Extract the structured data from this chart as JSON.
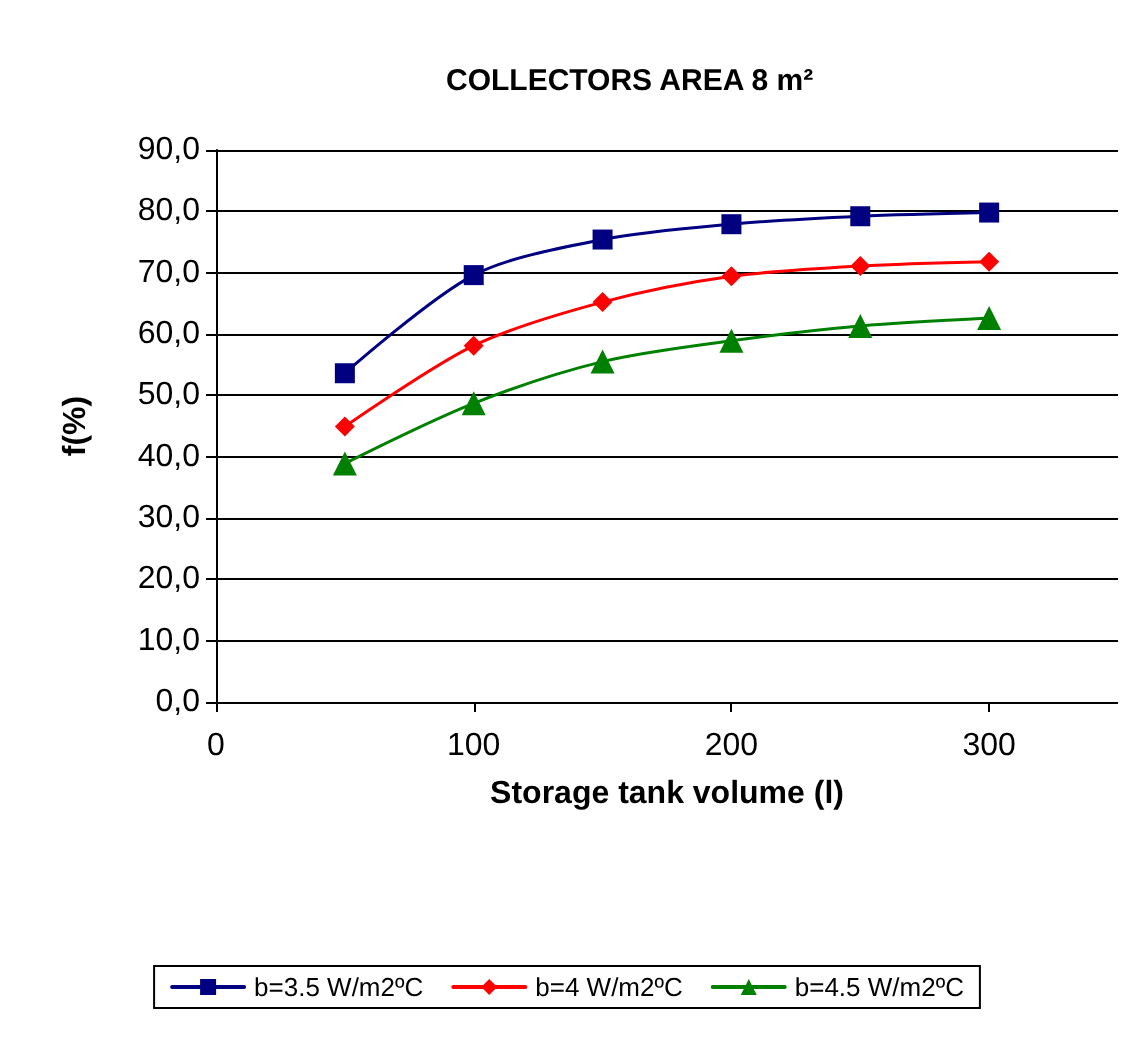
{
  "chart_data": {
    "type": "line",
    "title": "COLLECTORS AREA 8 m²",
    "xlabel": "Storage tank volume (l)",
    "ylabel": "f(%)",
    "x": [
      50,
      100,
      150,
      200,
      250,
      300
    ],
    "series": [
      {
        "name": "b=3.5 W/m2ºC",
        "color": "#000080",
        "marker": "square",
        "values": [
          53.6,
          69.6,
          75.4,
          77.9,
          79.2,
          79.8
        ]
      },
      {
        "name": "b=4 W/m2ºC",
        "color": "#ff0000",
        "marker": "diamond",
        "values": [
          44.9,
          58.1,
          65.2,
          69.4,
          71.1,
          71.8
        ]
      },
      {
        "name": "b=4.5 W/m2ºC",
        "color": "#008000",
        "marker": "triangle",
        "values": [
          38.9,
          48.7,
          55.5,
          58.9,
          61.3,
          62.6
        ]
      }
    ],
    "xlim": [
      0,
      350
    ],
    "xticks": [
      0,
      100,
      200,
      300
    ],
    "ylim": [
      0,
      90
    ],
    "yticks": [
      {
        "value": 0,
        "label": "0,0"
      },
      {
        "value": 10,
        "label": "10,0"
      },
      {
        "value": 20,
        "label": "20,0"
      },
      {
        "value": 30,
        "label": "30,0"
      },
      {
        "value": 40,
        "label": "40,0"
      },
      {
        "value": 50,
        "label": "50,0"
      },
      {
        "value": 60,
        "label": "60,0"
      },
      {
        "value": 70,
        "label": "70,0"
      },
      {
        "value": 80,
        "label": "80,0"
      },
      {
        "value": 90,
        "label": "90,0"
      }
    ],
    "grid": "y",
    "legend": "bottom",
    "line_style": "solid"
  }
}
